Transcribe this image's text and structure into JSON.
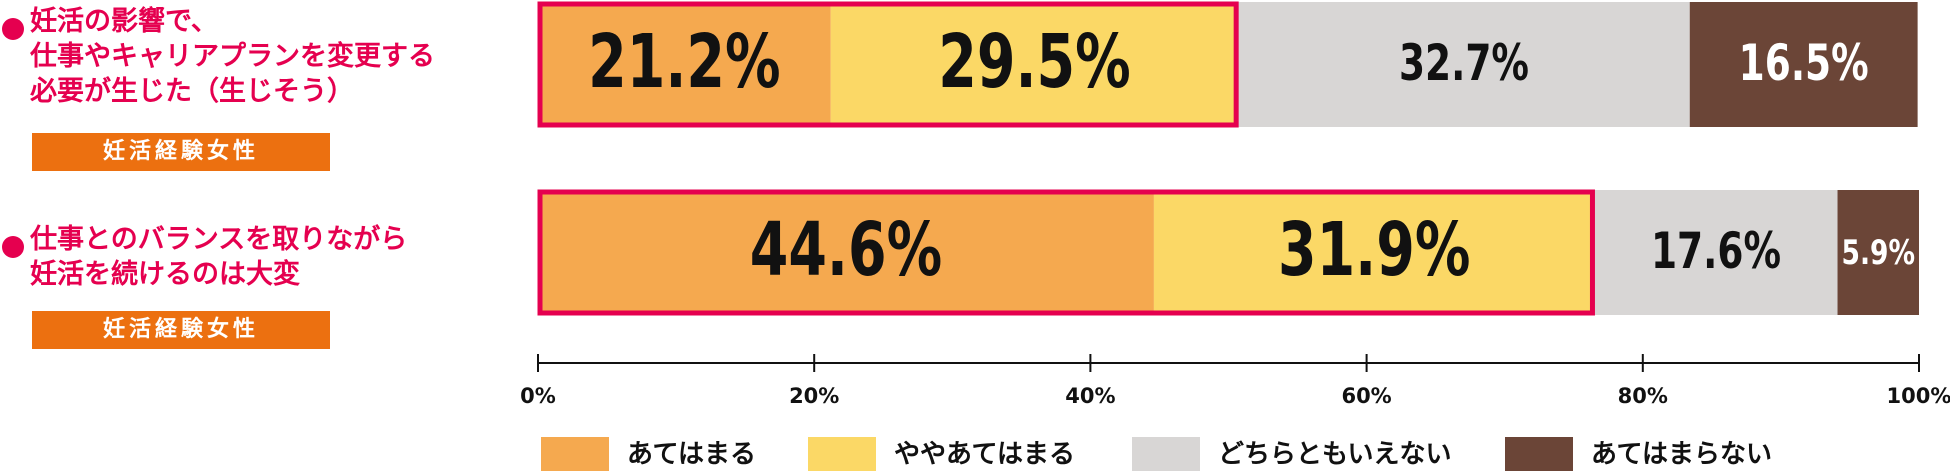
{
  "chart_data": {
    "type": "stacked-barh",
    "categories": [
      "妊活の影響で、\n仕事やキャリアプランを変更する\n必要が生じた（生じそう）",
      "仕事とのバランスを取りながら\n妊活を続けるのは大変"
    ],
    "category_notes": [
      "妊活経験女性",
      "妊活経験女性"
    ],
    "series": [
      {
        "name": "あてはまる",
        "color": "#f5a94f",
        "values": [
          21.2,
          44.6
        ],
        "value_labels": [
          "21.2%",
          "44.6%"
        ]
      },
      {
        "name": "ややあてはまる",
        "color": "#fbd866",
        "values": [
          29.5,
          31.9
        ],
        "value_labels": [
          "29.5%",
          "31.9%"
        ]
      },
      {
        "name": "どちらともいえない",
        "color": "#d8d6d5",
        "values": [
          32.7,
          17.6
        ],
        "value_labels": [
          "32.7%",
          "17.6%"
        ]
      },
      {
        "name": "あてはまらない",
        "color": "#6b4537",
        "values": [
          16.5,
          5.9
        ],
        "value_labels": [
          "16.5%",
          "5.9%"
        ]
      }
    ],
    "highlight_series": [
      0,
      1
    ],
    "highlight_color": "#e5004f",
    "xlim": [
      0,
      100
    ],
    "xticks": [
      {
        "value": 0,
        "label": "0%"
      },
      {
        "value": 20,
        "label": "20%"
      },
      {
        "value": 40,
        "label": "40%"
      },
      {
        "value": 60,
        "label": "60%"
      },
      {
        "value": 80,
        "label": "80%"
      },
      {
        "value": 100,
        "label": "100%"
      }
    ],
    "legend": "bottom"
  }
}
